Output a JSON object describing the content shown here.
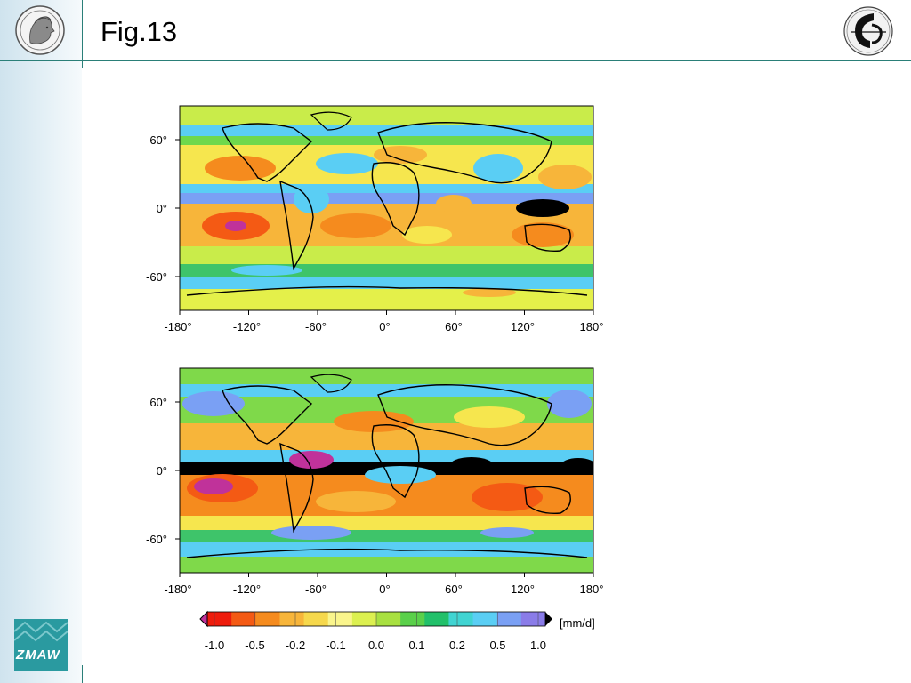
{
  "slide": {
    "title": "Fig.13"
  },
  "logos": {
    "left": "minerva-seal-icon",
    "right": "institute-emblem-icon",
    "bottom_left_text": "ZMAW"
  },
  "maps": [
    {
      "lat_ticks": [
        "60°",
        "0°",
        "-60°"
      ],
      "lon_ticks": [
        "-180°",
        "-120°",
        "-60°",
        "0°",
        "60°",
        "120°",
        "180°"
      ]
    },
    {
      "lat_ticks": [
        "60°",
        "0°",
        "-60°"
      ],
      "lon_ticks": [
        "-180°",
        "-120°",
        "-60°",
        "0°",
        "60°",
        "120°",
        "180°"
      ]
    }
  ],
  "colorbar": {
    "unit": "[mm/d]",
    "ticks": [
      "-1.0",
      "-0.5",
      "-0.2",
      "-0.1",
      "0.0",
      "0.1",
      "0.2",
      "0.5",
      "1.0"
    ],
    "colors": [
      "#ee1c0c",
      "#f45a14",
      "#f58b1e",
      "#f7b53a",
      "#f6d84c",
      "#faf58c",
      "#dcf050",
      "#a8e040",
      "#5ad04a",
      "#22c06a",
      "#40d4d2",
      "#5acef4",
      "#7aa0f4",
      "#8a7ce8"
    ],
    "under_color": "#c0329a",
    "over_color": "#000000"
  }
}
